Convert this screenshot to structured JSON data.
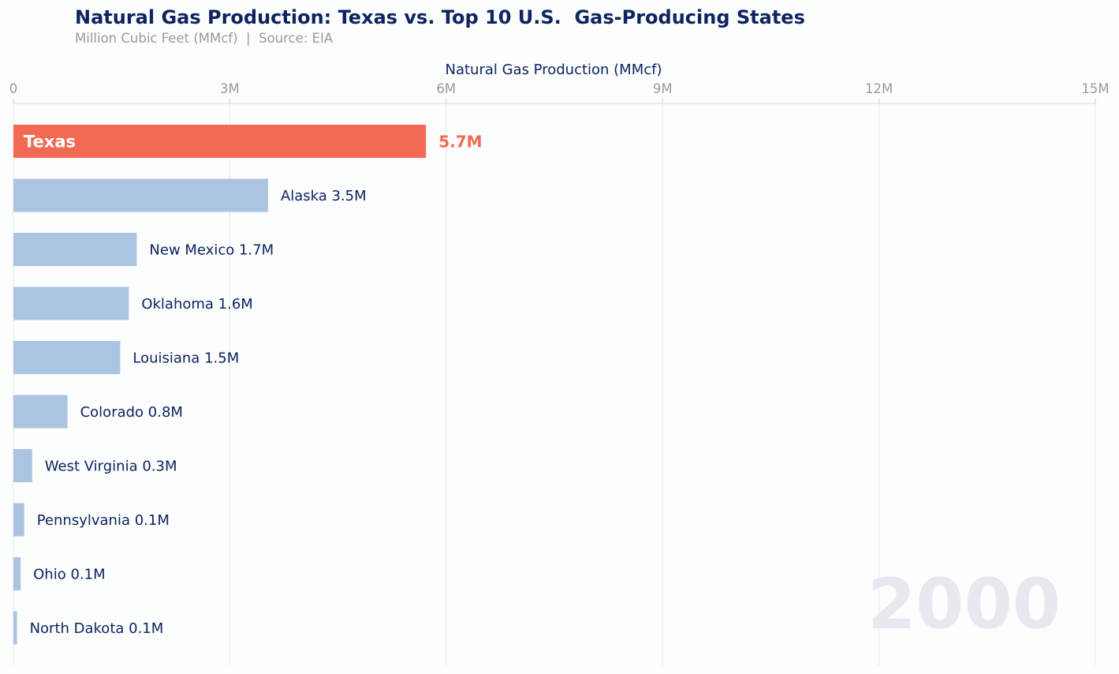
{
  "title": "Natural Gas Production: Texas vs. Top 10 U.S.  Gas-Producing States",
  "subtitle": "Million Cubic Feet (MMcf)  |  Source: EIA",
  "year": "2000",
  "colors": {
    "highlight": "#f26a53",
    "bar": "#aac4e2",
    "text": "#0d2461",
    "muted": "#9a9a9a",
    "grid": "#e6e6e6",
    "year": "#e8e8f0"
  },
  "chart_data": {
    "type": "bar",
    "orientation": "horizontal",
    "xlabel": "Natural Gas Production (MMcf)",
    "xlim": [
      0,
      15000000
    ],
    "xticks": [
      0,
      3000000,
      6000000,
      9000000,
      12000000,
      15000000
    ],
    "xtick_labels": [
      "0",
      "3M",
      "6M",
      "9M",
      "12M",
      "15M"
    ],
    "categories": [
      "Texas",
      "Alaska",
      "New Mexico",
      "Oklahoma",
      "Louisiana",
      "Colorado",
      "West Virginia",
      "Pennsylvania",
      "Ohio",
      "North Dakota"
    ],
    "values": [
      5720000,
      3530000,
      1710000,
      1600000,
      1480000,
      750000,
      260000,
      150000,
      100000,
      50000
    ],
    "value_labels": [
      "5.7M",
      "3.5M",
      "1.7M",
      "1.6M",
      "1.5M",
      "0.8M",
      "0.3M",
      "0.1M",
      "0.1M",
      "0.1M"
    ],
    "highlight": "Texas",
    "grid": true
  }
}
